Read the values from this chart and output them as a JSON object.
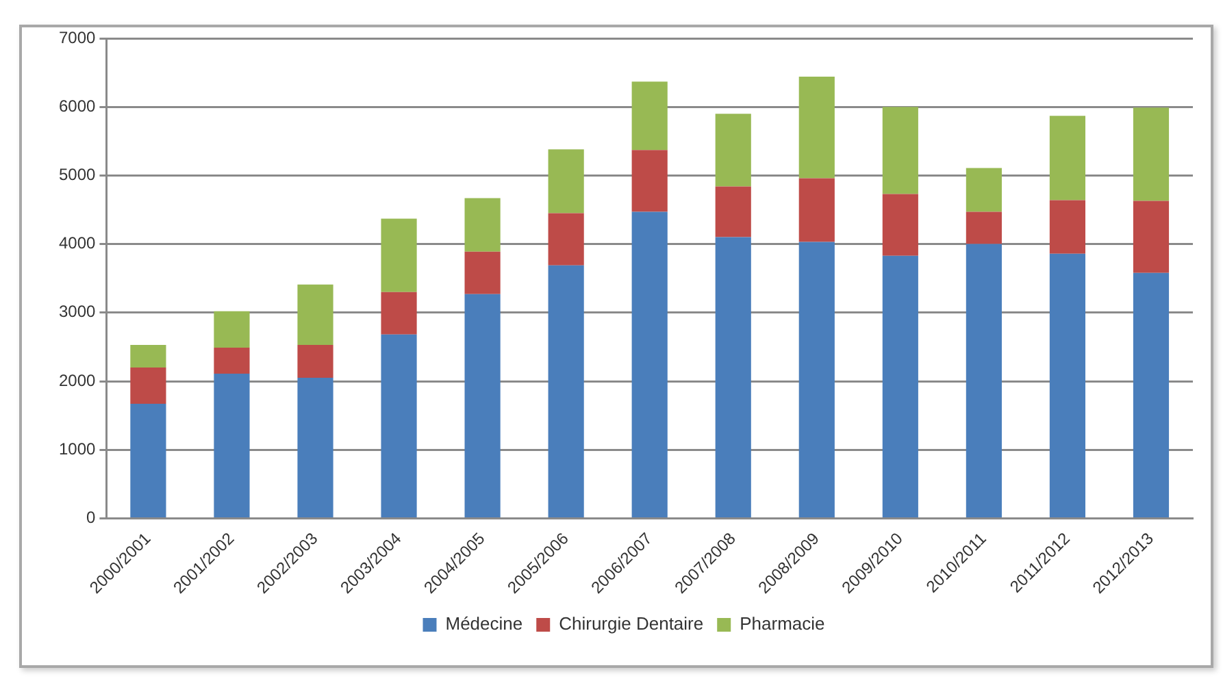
{
  "chart_data": {
    "type": "bar",
    "stacked": true,
    "categories": [
      "2000/2001",
      "2001/2002",
      "2002/2003",
      "2003/2004",
      "2004/2005",
      "2005/2006",
      "2006/2007",
      "2007/2008",
      "2008/2009",
      "2009/2010",
      "2010/2011",
      "2011/2012",
      "2012/2013"
    ],
    "series": [
      {
        "name": "Médecine",
        "color": "#4a7ebb",
        "values": [
          1670,
          2110,
          2050,
          2680,
          3270,
          3690,
          4470,
          4100,
          4030,
          3830,
          4000,
          3860,
          3580
        ]
      },
      {
        "name": "Chirurgie Dentaire",
        "color": "#be4b48",
        "values": [
          530,
          380,
          480,
          620,
          620,
          760,
          900,
          740,
          930,
          900,
          470,
          780,
          1050
        ]
      },
      {
        "name": "Pharmacie",
        "color": "#98b954",
        "values": [
          330,
          530,
          880,
          1070,
          780,
          930,
          1000,
          1060,
          1480,
          1270,
          640,
          1230,
          1360
        ]
      }
    ],
    "ylim": [
      0,
      7000
    ],
    "yticks": [
      0,
      1000,
      2000,
      3000,
      4000,
      5000,
      6000,
      7000
    ],
    "grid": "y",
    "legend": "bottom"
  }
}
